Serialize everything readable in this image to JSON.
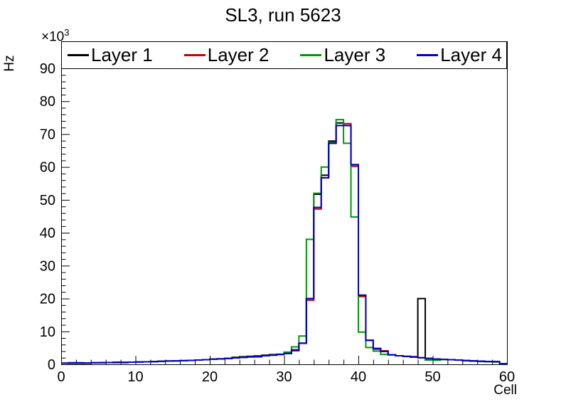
{
  "title": "SL3, run 5623",
  "axes": {
    "x": {
      "title": "Cell",
      "min": 0,
      "max": 60,
      "major_ticks": [
        0,
        10,
        20,
        30,
        40,
        50,
        60
      ],
      "minor_step": 2
    },
    "y": {
      "title": "Hz",
      "scale_label": "×10",
      "scale_exp": "3",
      "min": 0,
      "max": 98,
      "major_ticks": [
        0,
        10,
        20,
        30,
        40,
        50,
        60,
        70,
        80,
        90
      ],
      "minor_step": 2,
      "unit_multiplier": "1e3"
    }
  },
  "legend": {
    "entries": [
      {
        "label": "Layer 1",
        "color": "#000000"
      },
      {
        "label": "Layer 2",
        "color": "#cc0000"
      },
      {
        "label": "Layer 3",
        "color": "#009900"
      },
      {
        "label": "Layer 4",
        "color": "#0000cc"
      }
    ]
  },
  "chart_data": {
    "type": "line",
    "subtype": "step-histogram",
    "title": "SL3, run 5623",
    "xlabel": "Cell",
    "ylabel": "Hz",
    "y_values_in_units_of": "1000 Hz",
    "xlim": [
      0,
      60
    ],
    "ylim": [
      0,
      98
    ],
    "grid": false,
    "legend_position": "top",
    "bin_left_edges": [
      0,
      1,
      2,
      3,
      4,
      5,
      6,
      7,
      8,
      9,
      10,
      11,
      12,
      13,
      14,
      15,
      16,
      17,
      18,
      19,
      20,
      21,
      22,
      23,
      24,
      25,
      26,
      27,
      28,
      29,
      30,
      31,
      32,
      33,
      34,
      35,
      36,
      37,
      38,
      39,
      40,
      41,
      42,
      43,
      44,
      45,
      46,
      47,
      48,
      49,
      50,
      51,
      52,
      53,
      54,
      55,
      56,
      57,
      58,
      59
    ],
    "bin_width": 1,
    "series": [
      {
        "name": "Layer 1",
        "color": "#000000",
        "values": [
          0.35,
          0.45,
          0.45,
          0.4,
          0.45,
          0.5,
          0.55,
          0.65,
          0.6,
          0.65,
          0.7,
          0.75,
          0.8,
          0.9,
          1.0,
          1.05,
          1.1,
          1.2,
          1.3,
          1.4,
          1.55,
          1.65,
          1.8,
          2.1,
          2.3,
          2.45,
          2.6,
          2.75,
          2.95,
          3.0,
          3.3,
          4.4,
          6.4,
          20.0,
          51.7,
          57.5,
          67.9,
          73.4,
          72.6,
          60.7,
          21.0,
          7.3,
          4.8,
          3.9,
          2.9,
          2.6,
          2.4,
          2.2,
          20.0,
          1.8,
          1.6,
          1.5,
          1.4,
          1.3,
          1.15,
          1.05,
          0.95,
          0.85,
          0.8,
          0.15
        ]
      },
      {
        "name": "Layer 2",
        "color": "#cc0000",
        "values": [
          0.35,
          0.25,
          0.25,
          0.3,
          0.45,
          0.5,
          0.55,
          0.5,
          0.5,
          0.65,
          0.7,
          0.75,
          0.8,
          0.9,
          1.0,
          1.05,
          1.1,
          1.2,
          1.3,
          1.4,
          1.55,
          1.65,
          1.8,
          1.95,
          2.1,
          2.25,
          2.25,
          2.6,
          2.8,
          3.0,
          3.3,
          4.1,
          6.4,
          19.5,
          47.2,
          56.7,
          67.2,
          72.6,
          73.2,
          60.2,
          20.6,
          7.3,
          4.6,
          4.1,
          2.9,
          2.6,
          2.4,
          2.35,
          2.0,
          1.8,
          1.6,
          1.5,
          1.4,
          1.3,
          1.15,
          1.05,
          0.95,
          0.85,
          0.8,
          0.15
        ]
      },
      {
        "name": "Layer 3",
        "color": "#009900",
        "values": [
          0.35,
          0.3,
          0.3,
          0.4,
          0.45,
          0.5,
          0.55,
          0.65,
          0.6,
          0.65,
          0.7,
          0.75,
          0.8,
          0.9,
          1.0,
          1.05,
          1.1,
          1.2,
          1.3,
          1.4,
          1.55,
          1.65,
          1.8,
          1.95,
          2.1,
          2.3,
          2.55,
          2.6,
          2.8,
          3.1,
          3.7,
          5.3,
          8.6,
          38.0,
          52.0,
          60.0,
          67.5,
          74.4,
          67.2,
          44.8,
          9.8,
          5.1,
          4.0,
          3.0,
          2.9,
          2.6,
          2.4,
          2.2,
          2.0,
          1.3,
          1.25,
          1.5,
          1.4,
          1.3,
          1.05,
          0.95,
          0.85,
          0.8,
          0.7,
          0.1
        ]
      },
      {
        "name": "Layer 4",
        "color": "#0000cc",
        "values": [
          0.35,
          0.45,
          0.45,
          0.4,
          0.45,
          0.5,
          0.55,
          0.65,
          0.6,
          0.65,
          0.7,
          0.75,
          0.8,
          0.9,
          1.0,
          1.05,
          1.1,
          1.2,
          1.3,
          1.4,
          1.55,
          1.65,
          1.8,
          1.95,
          2.1,
          2.25,
          2.4,
          2.6,
          2.8,
          3.0,
          3.3,
          4.4,
          6.4,
          20.0,
          47.7,
          56.7,
          67.2,
          72.6,
          72.6,
          60.7,
          21.0,
          7.3,
          4.8,
          3.9,
          2.9,
          2.6,
          2.4,
          2.2,
          2.0,
          1.8,
          1.6,
          1.5,
          1.4,
          1.3,
          1.15,
          1.05,
          0.95,
          0.85,
          0.8,
          0.15
        ]
      }
    ]
  }
}
